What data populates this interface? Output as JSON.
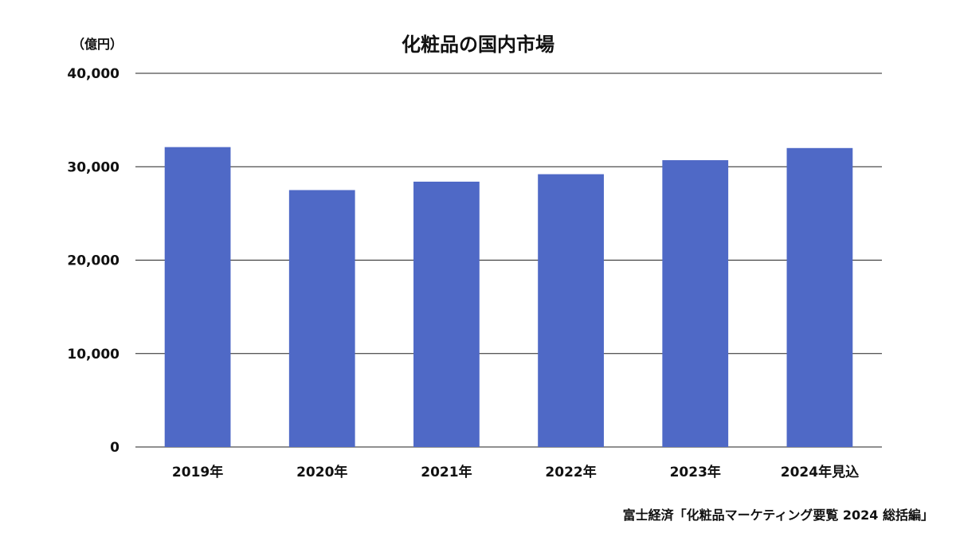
{
  "chart_data": {
    "type": "bar",
    "title": "化粧品の国内市場",
    "unit_label": "（億円）",
    "categories": [
      "2019年",
      "2020年",
      "2021年",
      "2022年",
      "2023年",
      "2024年見込"
    ],
    "series": [
      {
        "values": [
          32100,
          27500,
          28400,
          29200,
          30700,
          32000
        ]
      }
    ],
    "yticks": [
      0,
      10000,
      20000,
      30000,
      40000
    ],
    "ytick_labels": [
      "0",
      "10,000",
      "20,000",
      "30,000",
      "40,000"
    ],
    "ylim": [
      0,
      40000
    ],
    "grid": true,
    "legend": "none",
    "bar_color": "#4f69c6"
  },
  "source": "富士経済「化粧品マーケティング要覧 2024 総括編」"
}
